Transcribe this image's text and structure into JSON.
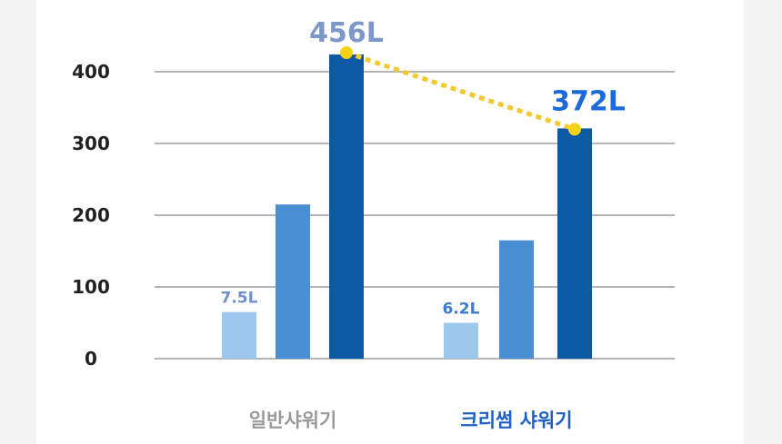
{
  "chart_data": {
    "type": "bar",
    "title": "",
    "xlabel": "",
    "ylabel": "",
    "ylim": [
      0,
      400
    ],
    "yticks": [
      "0",
      "100",
      "200",
      "300",
      "400"
    ],
    "grid": true,
    "legend": "none",
    "categories": [
      "일반샤워기",
      "크리썸 샤워기"
    ],
    "series": [
      {
        "values": [
          65,
          50
        ],
        "color": "#9dc8ee"
      },
      {
        "values": [
          215,
          165
        ],
        "color": "#4a8fd3"
      },
      {
        "values": [
          424,
          321
        ],
        "color": "#0c5aa6"
      }
    ],
    "annotations": [
      {
        "text": "7.5L",
        "category": 0,
        "series": 0,
        "color": "#6f8fcf"
      },
      {
        "text": "456L",
        "category": 0,
        "series": 2,
        "color": "#7d97c8"
      },
      {
        "text": "6.2L",
        "category": 1,
        "series": 0,
        "color": "#3b7bd1"
      },
      {
        "text": "372L",
        "category": 1,
        "series": 2,
        "color": "#1a6ad9"
      }
    ],
    "trend_line": {
      "style": "dotted",
      "color": "#f2c92e",
      "marker_color": "#f5d216"
    },
    "category_colors": [
      "#9a9a9a",
      "#1f5fc4"
    ],
    "gridline_color": "#b5b5b5"
  }
}
